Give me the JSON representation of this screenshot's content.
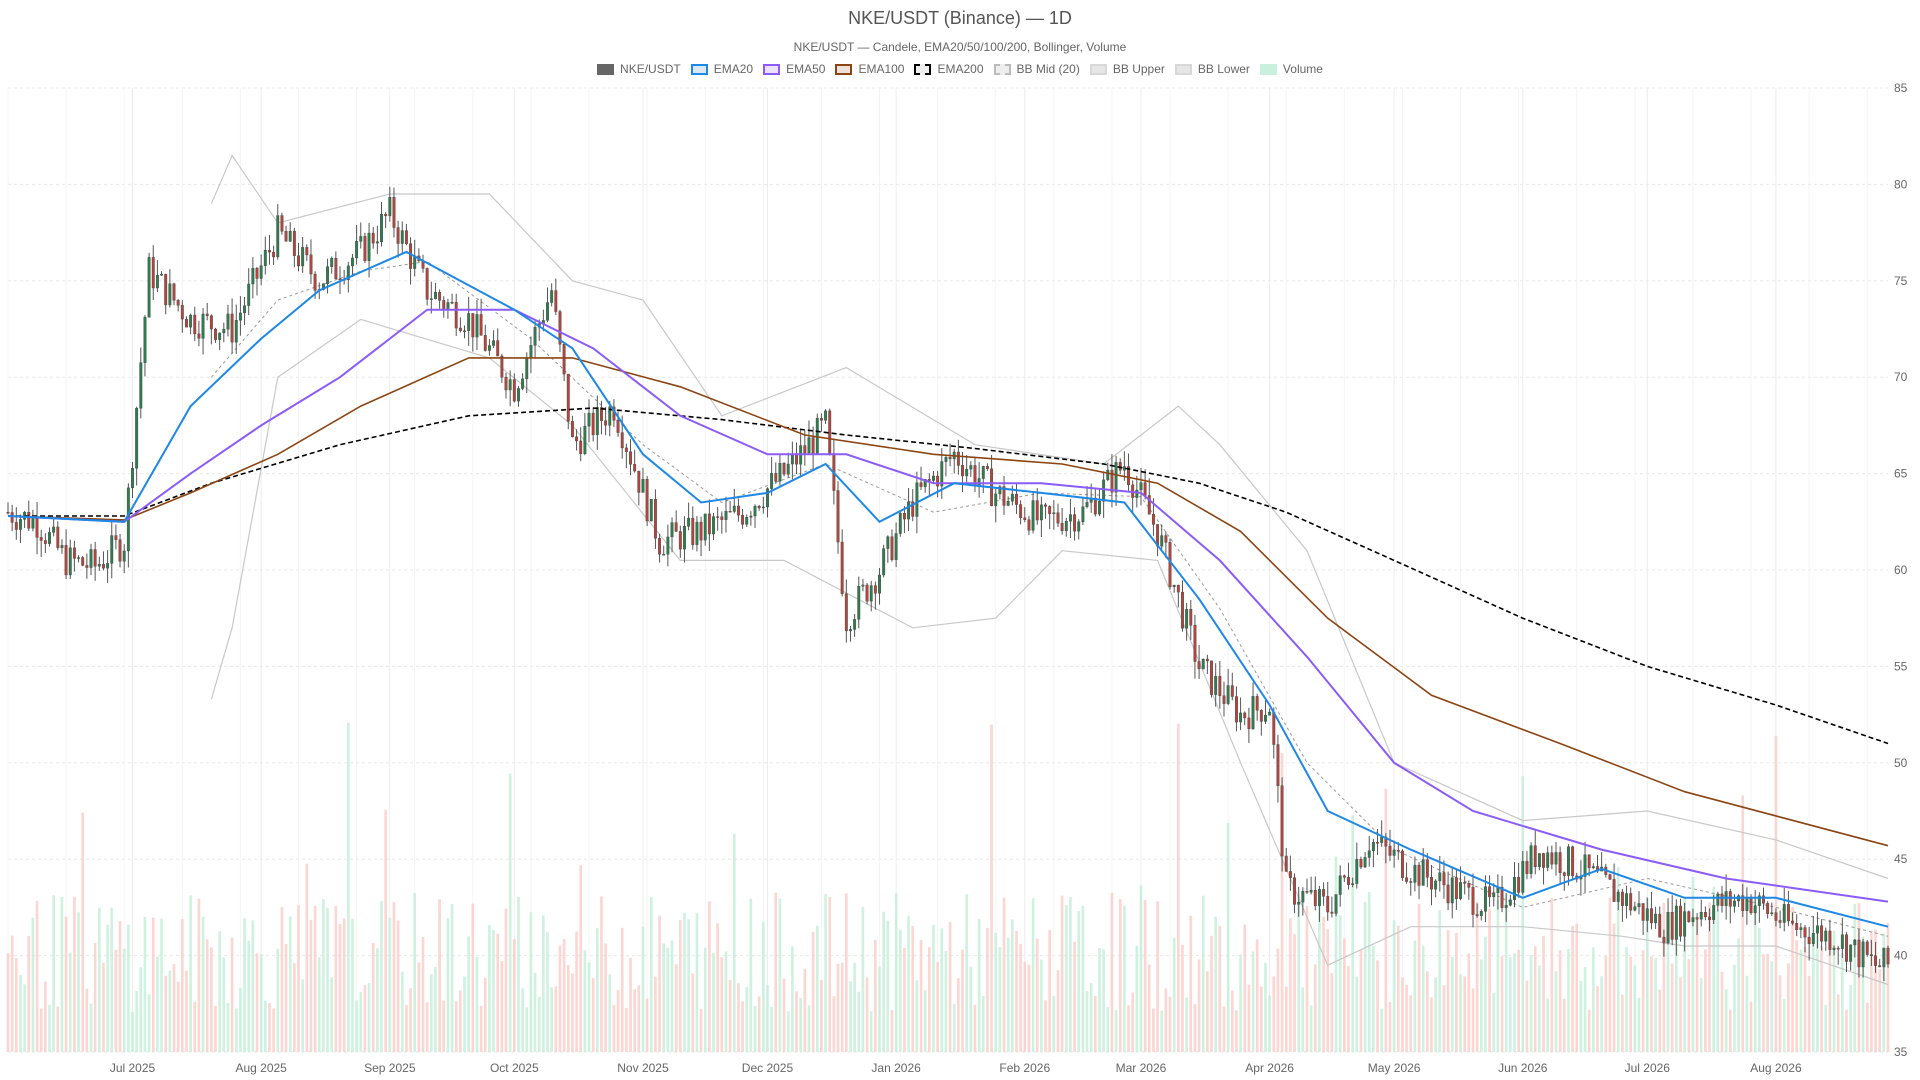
{
  "chart_data": {
    "type": "candlestick",
    "title": "NKE/USDT (Binance) — 1D",
    "subtitle": "NKE/USDT — Candele, EMA20/50/100/200, Bollinger, Volume",
    "legend": [
      {
        "name": "NKE/USDT",
        "fill": "#666666",
        "stroke": "#666666",
        "dash": false
      },
      {
        "name": "EMA20",
        "fill": "#dbe7f3",
        "stroke": "#1e88e5",
        "dash": false
      },
      {
        "name": "EMA50",
        "fill": "#ece2fb",
        "stroke": "#8b5cf6",
        "dash": false
      },
      {
        "name": "EMA100",
        "fill": "#eee2d8",
        "stroke": "#8b4513",
        "dash": false
      },
      {
        "name": "EMA200",
        "fill": "#eeeeee",
        "stroke": "#000000",
        "dash": true
      },
      {
        "name": "BB Mid (20)",
        "fill": "#eeeeee",
        "stroke": "#bbbbbb",
        "dash": true
      },
      {
        "name": "BB Upper",
        "fill": "#e6e6e6",
        "stroke": "#d8d8d8",
        "dash": false
      },
      {
        "name": "BB Lower",
        "fill": "#e6e6e6",
        "stroke": "#d8d8d8",
        "dash": false
      },
      {
        "name": "Volume",
        "fill": "#c9f0dc",
        "stroke": "#c9f0dc",
        "dash": false
      }
    ],
    "legend_position": "top-center",
    "x_range": [
      "2025-06-01",
      "2026-08-28"
    ],
    "x_ticks": [
      {
        "label": "Jul 2025",
        "date": "2025-07-01"
      },
      {
        "label": "Aug 2025",
        "date": "2025-08-01"
      },
      {
        "label": "Sep 2025",
        "date": "2025-09-01"
      },
      {
        "label": "Oct 2025",
        "date": "2025-10-01"
      },
      {
        "label": "Nov 2025",
        "date": "2025-11-01"
      },
      {
        "label": "Dec 2025",
        "date": "2025-12-01"
      },
      {
        "label": "Jan 2026",
        "date": "2026-01-01"
      },
      {
        "label": "Feb 2026",
        "date": "2026-02-01"
      },
      {
        "label": "Mar 2026",
        "date": "2026-03-01"
      },
      {
        "label": "Apr 2026",
        "date": "2026-04-01"
      },
      {
        "label": "May 2026",
        "date": "2026-05-01"
      },
      {
        "label": "Jun 2026",
        "date": "2026-06-01"
      },
      {
        "label": "Jul 2026",
        "date": "2026-07-01"
      },
      {
        "label": "Aug 2026",
        "date": "2026-08-01"
      }
    ],
    "y_axis": {
      "position": "right",
      "ylim": [
        35,
        85
      ],
      "ticks": [
        "35",
        "40",
        "45",
        "50",
        "55",
        "60",
        "65",
        "70",
        "75",
        "80",
        "85"
      ]
    },
    "grid": true,
    "colors": {
      "up": "#2e7d4f",
      "down": "#b5443c",
      "vol_up": "#bfeed5",
      "vol_down": "#fbc8c3"
    },
    "candles_approx": [
      {
        "date": "2025-06-01",
        "close": 63.0
      },
      {
        "date": "2025-06-08",
        "close": 62.5
      },
      {
        "date": "2025-06-15",
        "close": 60.5
      },
      {
        "date": "2025-06-22",
        "close": 60.2
      },
      {
        "date": "2025-06-29",
        "close": 61.5
      },
      {
        "date": "2025-07-05",
        "close": 75.5
      },
      {
        "date": "2025-07-15",
        "close": 73.0
      },
      {
        "date": "2025-07-25",
        "close": 72.5
      },
      {
        "date": "2025-08-05",
        "close": 77.5
      },
      {
        "date": "2025-08-15",
        "close": 75.0
      },
      {
        "date": "2025-08-25",
        "close": 76.5
      },
      {
        "date": "2025-09-01",
        "close": 78.5
      },
      {
        "date": "2025-09-10",
        "close": 74.5
      },
      {
        "date": "2025-09-20",
        "close": 73.0
      },
      {
        "date": "2025-10-01",
        "close": 69.5
      },
      {
        "date": "2025-10-10",
        "close": 74.5
      },
      {
        "date": "2025-10-15",
        "close": 66.5
      },
      {
        "date": "2025-10-25",
        "close": 68.5
      },
      {
        "date": "2025-11-05",
        "close": 61.5
      },
      {
        "date": "2025-11-15",
        "close": 62.0
      },
      {
        "date": "2025-11-25",
        "close": 63.0
      },
      {
        "date": "2025-12-05",
        "close": 65.0
      },
      {
        "date": "2025-12-15",
        "close": 67.5
      },
      {
        "date": "2025-12-20",
        "close": 57.5
      },
      {
        "date": "2025-12-28",
        "close": 60.0
      },
      {
        "date": "2026-01-05",
        "close": 63.5
      },
      {
        "date": "2026-01-15",
        "close": 66.0
      },
      {
        "date": "2026-01-25",
        "close": 64.0
      },
      {
        "date": "2026-02-05",
        "close": 62.5
      },
      {
        "date": "2026-02-15",
        "close": 63.0
      },
      {
        "date": "2026-02-25",
        "close": 65.5
      },
      {
        "date": "2026-03-05",
        "close": 62.0
      },
      {
        "date": "2026-03-15",
        "close": 55.0
      },
      {
        "date": "2026-03-25",
        "close": 52.5
      },
      {
        "date": "2026-04-01",
        "close": 53.0
      },
      {
        "date": "2026-04-05",
        "close": 43.5
      },
      {
        "date": "2026-04-15",
        "close": 42.5
      },
      {
        "date": "2026-04-25",
        "close": 46.0
      },
      {
        "date": "2026-05-05",
        "close": 44.5
      },
      {
        "date": "2026-05-15",
        "close": 43.5
      },
      {
        "date": "2026-05-25",
        "close": 42.5
      },
      {
        "date": "2026-06-05",
        "close": 45.5
      },
      {
        "date": "2026-06-15",
        "close": 44.5
      },
      {
        "date": "2026-06-25",
        "close": 43.0
      },
      {
        "date": "2026-07-05",
        "close": 41.5
      },
      {
        "date": "2026-07-15",
        "close": 42.5
      },
      {
        "date": "2026-07-25",
        "close": 43.0
      },
      {
        "date": "2026-08-05",
        "close": 41.5
      },
      {
        "date": "2026-08-15",
        "close": 41.0
      },
      {
        "date": "2026-08-25",
        "close": 39.5
      }
    ],
    "ema20": [
      {
        "date": "2025-06-01",
        "value": 62.8
      },
      {
        "date": "2025-06-29",
        "value": 62.5
      },
      {
        "date": "2025-07-15",
        "value": 68.5
      },
      {
        "date": "2025-08-01",
        "value": 72.0
      },
      {
        "date": "2025-08-15",
        "value": 74.5
      },
      {
        "date": "2025-09-05",
        "value": 76.5
      },
      {
        "date": "2025-10-01",
        "value": 73.5
      },
      {
        "date": "2025-10-15",
        "value": 71.5
      },
      {
        "date": "2025-11-01",
        "value": 66.0
      },
      {
        "date": "2025-11-15",
        "value": 63.5
      },
      {
        "date": "2025-12-01",
        "value": 64.0
      },
      {
        "date": "2025-12-15",
        "value": 65.5
      },
      {
        "date": "2025-12-28",
        "value": 62.5
      },
      {
        "date": "2026-01-15",
        "value": 64.5
      },
      {
        "date": "2026-02-05",
        "value": 64.0
      },
      {
        "date": "2026-02-25",
        "value": 63.5
      },
      {
        "date": "2026-03-15",
        "value": 58.5
      },
      {
        "date": "2026-04-01",
        "value": 53.0
      },
      {
        "date": "2026-04-15",
        "value": 47.5
      },
      {
        "date": "2026-05-05",
        "value": 45.5
      },
      {
        "date": "2026-06-01",
        "value": 43.0
      },
      {
        "date": "2026-06-20",
        "value": 44.5
      },
      {
        "date": "2026-07-10",
        "value": 43.0
      },
      {
        "date": "2026-08-01",
        "value": 43.0
      },
      {
        "date": "2026-08-28",
        "value": 41.5
      }
    ],
    "ema50": [
      {
        "date": "2025-06-01",
        "value": 62.8
      },
      {
        "date": "2025-06-29",
        "value": 62.5
      },
      {
        "date": "2025-07-15",
        "value": 65.0
      },
      {
        "date": "2025-08-01",
        "value": 67.5
      },
      {
        "date": "2025-08-20",
        "value": 70.0
      },
      {
        "date": "2025-09-10",
        "value": 73.5
      },
      {
        "date": "2025-10-01",
        "value": 73.5
      },
      {
        "date": "2025-10-20",
        "value": 71.5
      },
      {
        "date": "2025-11-10",
        "value": 68.0
      },
      {
        "date": "2025-12-01",
        "value": 66.0
      },
      {
        "date": "2025-12-20",
        "value": 66.0
      },
      {
        "date": "2026-01-10",
        "value": 64.5
      },
      {
        "date": "2026-02-05",
        "value": 64.5
      },
      {
        "date": "2026-03-01",
        "value": 64.0
      },
      {
        "date": "2026-03-20",
        "value": 60.5
      },
      {
        "date": "2026-04-10",
        "value": 55.5
      },
      {
        "date": "2026-05-01",
        "value": 50.0
      },
      {
        "date": "2026-05-20",
        "value": 47.5
      },
      {
        "date": "2026-06-20",
        "value": 45.5
      },
      {
        "date": "2026-07-20",
        "value": 44.0
      },
      {
        "date": "2026-08-28",
        "value": 42.8
      }
    ],
    "ema100": [
      {
        "date": "2025-06-01",
        "value": 62.8
      },
      {
        "date": "2025-06-29",
        "value": 62.6
      },
      {
        "date": "2025-07-15",
        "value": 64.0
      },
      {
        "date": "2025-08-05",
        "value": 66.0
      },
      {
        "date": "2025-08-25",
        "value": 68.5
      },
      {
        "date": "2025-09-20",
        "value": 71.0
      },
      {
        "date": "2025-10-15",
        "value": 71.0
      },
      {
        "date": "2025-11-10",
        "value": 69.5
      },
      {
        "date": "2025-12-10",
        "value": 67.0
      },
      {
        "date": "2026-01-10",
        "value": 66.0
      },
      {
        "date": "2026-02-10",
        "value": 65.5
      },
      {
        "date": "2026-03-05",
        "value": 64.5
      },
      {
        "date": "2026-03-25",
        "value": 62.0
      },
      {
        "date": "2026-04-15",
        "value": 57.5
      },
      {
        "date": "2026-05-10",
        "value": 53.5
      },
      {
        "date": "2026-06-10",
        "value": 51.0
      },
      {
        "date": "2026-07-10",
        "value": 48.5
      },
      {
        "date": "2026-08-28",
        "value": 45.7
      }
    ],
    "ema200": [
      {
        "date": "2025-06-01",
        "value": 62.8
      },
      {
        "date": "2025-06-29",
        "value": 62.8
      },
      {
        "date": "2025-07-20",
        "value": 64.5
      },
      {
        "date": "2025-08-20",
        "value": 66.5
      },
      {
        "date": "2025-09-20",
        "value": 68.0
      },
      {
        "date": "2025-10-20",
        "value": 68.4
      },
      {
        "date": "2025-11-20",
        "value": 67.8
      },
      {
        "date": "2025-12-20",
        "value": 67.0
      },
      {
        "date": "2026-01-20",
        "value": 66.3
      },
      {
        "date": "2026-02-20",
        "value": 65.5
      },
      {
        "date": "2026-03-15",
        "value": 64.5
      },
      {
        "date": "2026-04-05",
        "value": 63.0
      },
      {
        "date": "2026-05-01",
        "value": 60.5
      },
      {
        "date": "2026-06-01",
        "value": 57.5
      },
      {
        "date": "2026-07-01",
        "value": 55.0
      },
      {
        "date": "2026-08-01",
        "value": 53.0
      },
      {
        "date": "2026-08-28",
        "value": 51.0
      }
    ],
    "bb_mid": [
      {
        "date": "2025-07-20",
        "value": 70.0
      },
      {
        "date": "2025-08-05",
        "value": 74.0
      },
      {
        "date": "2025-08-25",
        "value": 75.5
      },
      {
        "date": "2025-09-10",
        "value": 76.0
      },
      {
        "date": "2025-10-05",
        "value": 72.0
      },
      {
        "date": "2025-11-01",
        "value": 66.5
      },
      {
        "date": "2025-11-20",
        "value": 63.5
      },
      {
        "date": "2025-12-15",
        "value": 65.5
      },
      {
        "date": "2026-01-10",
        "value": 63.0
      },
      {
        "date": "2026-02-05",
        "value": 64.0
      },
      {
        "date": "2026-03-01",
        "value": 63.8
      },
      {
        "date": "2026-03-20",
        "value": 58.0
      },
      {
        "date": "2026-04-10",
        "value": 50.0
      },
      {
        "date": "2026-05-01",
        "value": 45.5
      },
      {
        "date": "2026-06-01",
        "value": 42.5
      },
      {
        "date": "2026-07-01",
        "value": 44.0
      },
      {
        "date": "2026-08-01",
        "value": 42.5
      },
      {
        "date": "2026-08-28",
        "value": 41.0
      }
    ],
    "bb_upper": [
      {
        "date": "2025-07-20",
        "value": 79.0
      },
      {
        "date": "2025-07-25",
        "value": 81.5
      },
      {
        "date": "2025-08-05",
        "value": 78.0
      },
      {
        "date": "2025-09-01",
        "value": 79.5
      },
      {
        "date": "2025-09-25",
        "value": 79.5
      },
      {
        "date": "2025-10-15",
        "value": 75.0
      },
      {
        "date": "2025-11-01",
        "value": 74.0
      },
      {
        "date": "2025-11-20",
        "value": 68.0
      },
      {
        "date": "2025-12-20",
        "value": 70.5
      },
      {
        "date": "2026-01-20",
        "value": 66.5
      },
      {
        "date": "2026-02-20",
        "value": 65.5
      },
      {
        "date": "2026-03-10",
        "value": 68.5
      },
      {
        "date": "2026-03-20",
        "value": 66.5
      },
      {
        "date": "2026-04-10",
        "value": 61.0
      },
      {
        "date": "2026-05-01",
        "value": 50.0
      },
      {
        "date": "2026-06-01",
        "value": 47.0
      },
      {
        "date": "2026-07-01",
        "value": 47.5
      },
      {
        "date": "2026-08-01",
        "value": 46.0
      },
      {
        "date": "2026-08-28",
        "value": 44.0
      }
    ],
    "bb_lower": [
      {
        "date": "2025-07-20",
        "value": 53.3
      },
      {
        "date": "2025-07-25",
        "value": 57.0
      },
      {
        "date": "2025-08-05",
        "value": 70.0
      },
      {
        "date": "2025-08-25",
        "value": 73.0
      },
      {
        "date": "2025-09-25",
        "value": 71.0
      },
      {
        "date": "2025-10-15",
        "value": 67.5
      },
      {
        "date": "2025-11-10",
        "value": 60.5
      },
      {
        "date": "2025-12-05",
        "value": 60.5
      },
      {
        "date": "2026-01-05",
        "value": 57.0
      },
      {
        "date": "2026-01-25",
        "value": 57.5
      },
      {
        "date": "2026-02-10",
        "value": 61.0
      },
      {
        "date": "2026-03-05",
        "value": 60.5
      },
      {
        "date": "2026-03-25",
        "value": 50.0
      },
      {
        "date": "2026-04-15",
        "value": 39.5
      },
      {
        "date": "2026-05-05",
        "value": 41.5
      },
      {
        "date": "2026-06-01",
        "value": 41.5
      },
      {
        "date": "2026-06-25",
        "value": 41.0
      },
      {
        "date": "2026-07-10",
        "value": 40.5
      },
      {
        "date": "2026-08-01",
        "value": 40.5
      },
      {
        "date": "2026-08-28",
        "value": 38.5
      }
    ]
  }
}
